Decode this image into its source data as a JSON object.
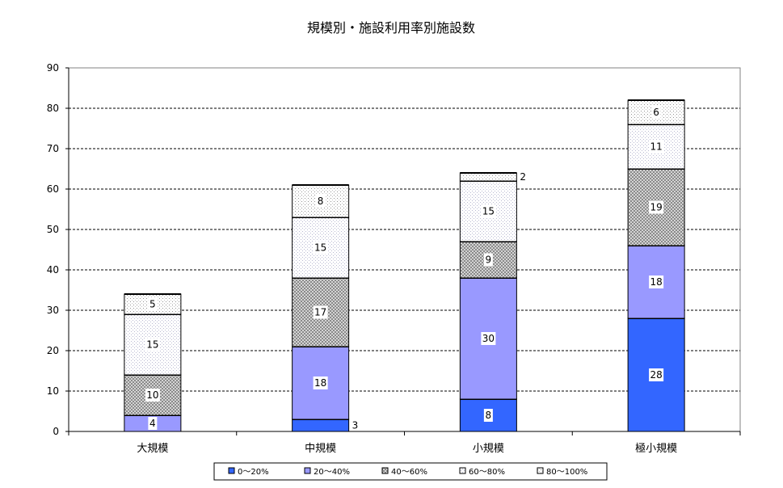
{
  "chart_data": {
    "type": "bar",
    "stacked": true,
    "title": "規模別・施設利用率別施設数",
    "categories": [
      "大規模",
      "中規模",
      "小規模",
      "極小規模"
    ],
    "series": [
      {
        "name": "0～20%",
        "values": [
          0,
          3,
          8,
          28
        ],
        "color": "#3366ff"
      },
      {
        "name": "20～40%",
        "values": [
          4,
          18,
          30,
          18
        ],
        "color": "#9999ff"
      },
      {
        "name": "40～60%",
        "values": [
          10,
          17,
          9,
          19
        ],
        "color": "#c0c0c0"
      },
      {
        "name": "60～80%",
        "values": [
          15,
          15,
          15,
          11
        ],
        "color": "#ffffff"
      },
      {
        "name": "80～100%",
        "values": [
          5,
          8,
          2,
          6
        ],
        "color": "#ffffff"
      }
    ],
    "ylim": [
      0,
      90
    ],
    "yticks": [
      0,
      10,
      20,
      30,
      40,
      50,
      60,
      70,
      80,
      90
    ],
    "grid": true,
    "legend": "bottom"
  }
}
